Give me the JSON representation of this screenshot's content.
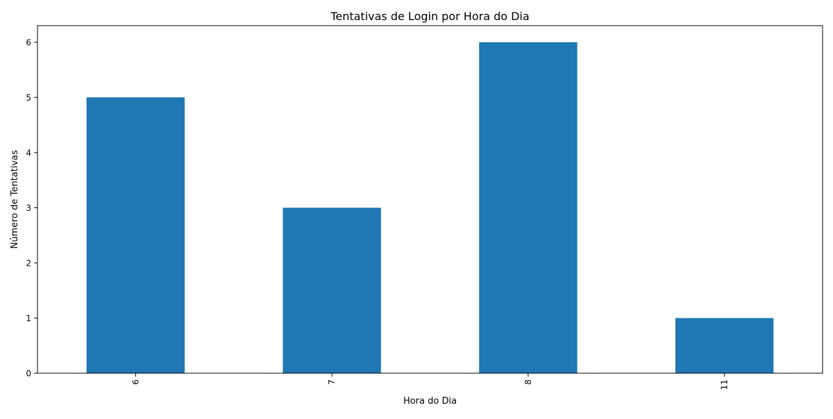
{
  "chart_data": {
    "type": "bar",
    "title": "Tentativas de Login por Hora do Dia",
    "xlabel": "Hora do Dia",
    "ylabel": "Número de Tentativas",
    "categories": [
      "6",
      "7",
      "8",
      "11"
    ],
    "values": [
      5,
      3,
      6,
      1
    ],
    "ylim": [
      0,
      6.3
    ],
    "yticks": [
      0,
      1,
      2,
      3,
      4,
      5,
      6
    ],
    "x_tick_rotation": "vertical",
    "grid": false,
    "legend": "none",
    "colors": {
      "bar": "#1f77b4",
      "axis": "#000000",
      "background": "#ffffff"
    }
  }
}
